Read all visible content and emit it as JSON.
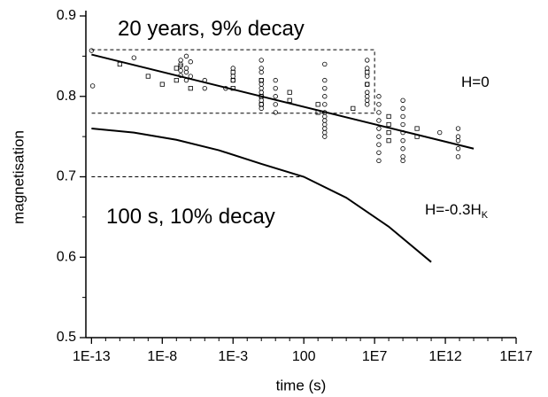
{
  "chart_data": {
    "type": "scatter",
    "xlabel": "time (s)",
    "ylabel": "magnetisation",
    "xscale": "log",
    "xlim": [
      4e-14,
      1e+17
    ],
    "xticks": [
      {
        "value": 1e-13,
        "label": "1E-13"
      },
      {
        "value": 1e-08,
        "label": "1E-8"
      },
      {
        "value": 0.001,
        "label": "1E-3"
      },
      100,
      {
        "value": 10000000.0,
        "label": "1E7"
      },
      {
        "value": 1000000000000.0,
        "label": "1E12"
      },
      {
        "value": 1e+17,
        "label": "1E17"
      }
    ],
    "xminorticks": [
      1e-12,
      1e-11,
      1e-10,
      1e-09,
      1e-07,
      1e-06,
      1e-05,
      0.0001,
      0.01,
      0.1,
      1,
      10,
      1000,
      10000,
      100000,
      1000000,
      100000000.0,
      1000000000.0,
      10000000000.0,
      100000000000.0,
      10000000000000.0,
      100000000000000.0,
      1000000000000000.0,
      1e+16
    ],
    "ylim": [
      0.5,
      0.9
    ],
    "yticks": [
      0.5,
      0.6,
      0.7,
      0.8,
      0.9
    ],
    "yminorticks": [
      0.55,
      0.65,
      0.75,
      0.85
    ],
    "annotations": [
      {
        "text": "20 years, 9% decay"
      },
      {
        "text": "100 s, 10% decay"
      },
      {
        "text": "H=0"
      },
      {
        "text": "H=-0.3H",
        "sub": "K"
      }
    ],
    "series": [
      {
        "kind": "scatter",
        "marker": "circle",
        "color": "#000000",
        "x": [
          1e-13,
          1.2e-13,
          1e-10,
          2e-07,
          2e-07,
          2e-07,
          2e-07,
          2e-07,
          5e-07,
          5e-07,
          5e-07,
          5e-07,
          1e-06,
          1e-06,
          1e-05,
          1e-05,
          0.0003,
          0.001,
          0.001,
          0.001,
          0.1,
          0.1,
          0.1,
          0.1,
          0.1,
          0.1,
          0.1,
          0.1,
          0.1,
          0.1,
          0.1,
          1,
          1,
          1,
          1,
          1,
          3000,
          3000,
          3000,
          3000,
          3000,
          3000,
          3000,
          3000,
          3000,
          3000,
          3000,
          3000,
          3000000,
          3000000,
          3000000,
          3000000,
          3000000,
          3000000,
          3000000,
          3000000,
          20000000.0,
          20000000.0,
          20000000.0,
          20000000.0,
          20000000.0,
          20000000.0,
          20000000.0,
          20000000.0,
          20000000.0,
          1000000000.0,
          1000000000.0,
          1000000000.0,
          1000000000.0,
          1000000000.0,
          1000000000.0,
          1000000000.0,
          1000000000.0,
          1000000000.0,
          400000000000.0,
          8000000000000.0,
          8000000000000.0,
          8000000000000.0,
          8000000000000.0,
          8000000000000.0
        ],
        "values": [
          0.857,
          0.813,
          0.848,
          0.845,
          0.838,
          0.832,
          0.826,
          0.84,
          0.85,
          0.835,
          0.82,
          0.83,
          0.843,
          0.825,
          0.82,
          0.81,
          0.81,
          0.835,
          0.82,
          0.825,
          0.845,
          0.835,
          0.83,
          0.82,
          0.815,
          0.81,
          0.805,
          0.8,
          0.795,
          0.79,
          0.785,
          0.82,
          0.81,
          0.8,
          0.79,
          0.78,
          0.84,
          0.82,
          0.81,
          0.8,
          0.79,
          0.78,
          0.775,
          0.77,
          0.765,
          0.76,
          0.755,
          0.75,
          0.845,
          0.835,
          0.825,
          0.815,
          0.805,
          0.8,
          0.795,
          0.79,
          0.8,
          0.79,
          0.78,
          0.77,
          0.76,
          0.75,
          0.74,
          0.73,
          0.72,
          0.795,
          0.785,
          0.775,
          0.765,
          0.755,
          0.745,
          0.735,
          0.725,
          0.72,
          0.755,
          0.76,
          0.75,
          0.745,
          0.735,
          0.725
        ]
      },
      {
        "kind": "scatter",
        "marker": "square",
        "color": "#000000",
        "x": [
          1e-11,
          1e-09,
          1e-08,
          1e-07,
          1e-07,
          1e-06,
          0.001,
          0.001,
          0.001,
          0.1,
          0.1,
          0.1,
          10,
          10,
          1000,
          1000,
          300000,
          3000000,
          3000000,
          100000000.0,
          100000000.0,
          100000000.0,
          100000000.0,
          10000000000.0,
          10000000000.0
        ],
        "values": [
          0.84,
          0.825,
          0.815,
          0.835,
          0.82,
          0.81,
          0.83,
          0.82,
          0.81,
          0.82,
          0.8,
          0.79,
          0.805,
          0.795,
          0.78,
          0.79,
          0.785,
          0.83,
          0.815,
          0.775,
          0.765,
          0.755,
          0.745,
          0.76,
          0.75
        ]
      },
      {
        "kind": "line",
        "dash": false,
        "color": "#000000",
        "x": [
          1e-13,
          100000000000000.0
        ],
        "values": [
          0.852,
          0.735
        ]
      },
      {
        "kind": "line",
        "dash": false,
        "color": "#000000",
        "x": [
          1e-13,
          1e-10,
          1e-07,
          0.0001,
          0.1,
          100,
          100000,
          100000000.0,
          100000000000.0
        ],
        "values": [
          0.76,
          0.755,
          0.746,
          0.733,
          0.716,
          0.7,
          0.674,
          0.638,
          0.594
        ]
      },
      {
        "kind": "line",
        "dash": true,
        "color": "#000000",
        "x": [
          1e-13,
          10000000.0,
          10000000.0,
          1e-13
        ],
        "values": [
          0.858,
          0.858,
          0.779,
          0.779
        ]
      },
      {
        "kind": "line",
        "dash": true,
        "color": "#000000",
        "x": [
          1e-13,
          100
        ],
        "values": [
          0.7,
          0.7
        ]
      }
    ]
  }
}
